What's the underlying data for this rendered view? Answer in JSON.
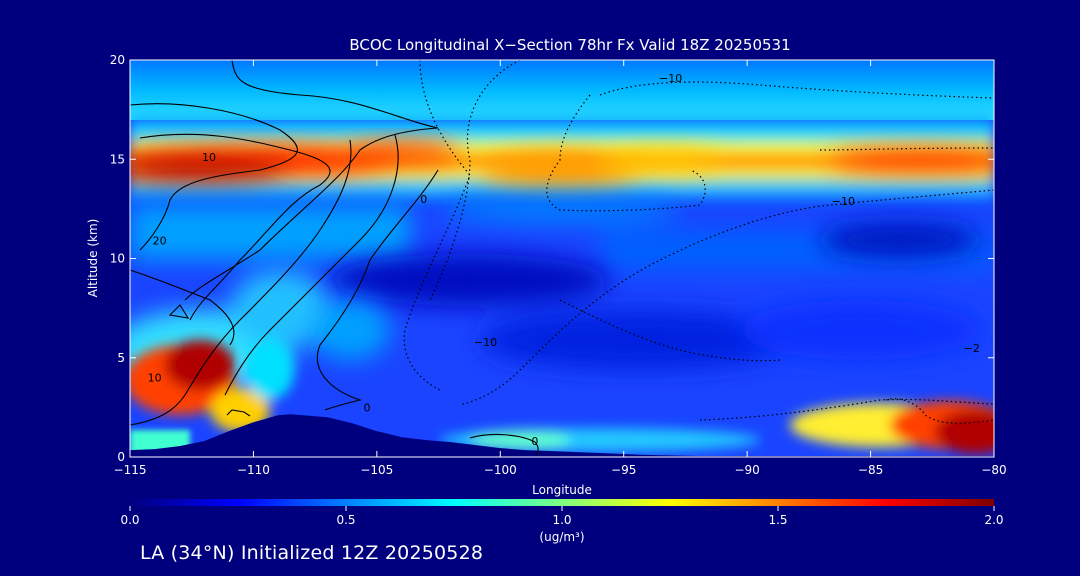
{
  "footer_text": "LA (34°N) Initialized 12Z 20250528",
  "chart_data": {
    "type": "heatmap",
    "title": "BCOC Longitudinal X−Section 78hr  Fx Valid 18Z 20250531",
    "xlabel": "Longitude",
    "ylabel": "Altitude (km)",
    "xlim": [
      -115,
      -80
    ],
    "ylim": [
      0,
      20
    ],
    "x_ticks": [
      -115,
      -110,
      -105,
      -100,
      -95,
      -90,
      -85,
      -80
    ],
    "x_tick_labels": [
      "−115",
      "−110",
      "−105",
      "−100",
      "−95",
      "−90",
      "−85",
      "−80"
    ],
    "y_ticks": [
      0,
      5,
      10,
      15,
      20
    ],
    "y_tick_labels": [
      "0",
      "5",
      "10",
      "15",
      "20"
    ],
    "colorbar": {
      "min": 0.0,
      "max": 2.0,
      "ticks": [
        0.0,
        0.5,
        1.0,
        1.5,
        2.0
      ],
      "tick_labels": [
        "0.0",
        "0.5",
        "1.0",
        "1.5",
        "2.0"
      ],
      "label": "(ug/m³)",
      "colormap": "jet"
    },
    "contour_labels": [
      {
        "lon": -111.8,
        "alt": 14.9,
        "text": "10"
      },
      {
        "lon": -113.8,
        "alt": 10.7,
        "text": "20"
      },
      {
        "lon": -114.0,
        "alt": 3.8,
        "text": "10"
      },
      {
        "lon": -103.1,
        "alt": 12.8,
        "text": "0"
      },
      {
        "lon": -105.4,
        "alt": 2.3,
        "text": "0"
      },
      {
        "lon": -98.6,
        "alt": 0.6,
        "text": "0"
      },
      {
        "lon": -100.6,
        "alt": 5.6,
        "text": "−10"
      },
      {
        "lon": -93.1,
        "alt": 18.9,
        "text": "−10"
      },
      {
        "lon": -86.1,
        "alt": 12.7,
        "text": "−10"
      },
      {
        "lon": -80.9,
        "alt": 5.3,
        "text": "−2"
      }
    ],
    "terrain": {
      "lon": [
        -115,
        -114,
        -113,
        -112,
        -111,
        -110,
        -109,
        -108.5,
        -107,
        -106,
        -105,
        -104,
        -103,
        -102,
        -101,
        -100,
        -99,
        -98,
        -97,
        -96,
        -95,
        -94,
        -92,
        -90,
        -88,
        -86,
        -84,
        -82,
        -80
      ],
      "alt": [
        0.35,
        0.4,
        0.55,
        0.8,
        1.3,
        1.75,
        2.1,
        2.15,
        2.0,
        1.7,
        1.3,
        1.0,
        0.85,
        0.75,
        0.6,
        0.45,
        0.35,
        0.3,
        0.25,
        0.2,
        0.15,
        0.1,
        0.05,
        0.05,
        0.05,
        0.05,
        0.05,
        0.05,
        0.05
      ]
    }
  }
}
